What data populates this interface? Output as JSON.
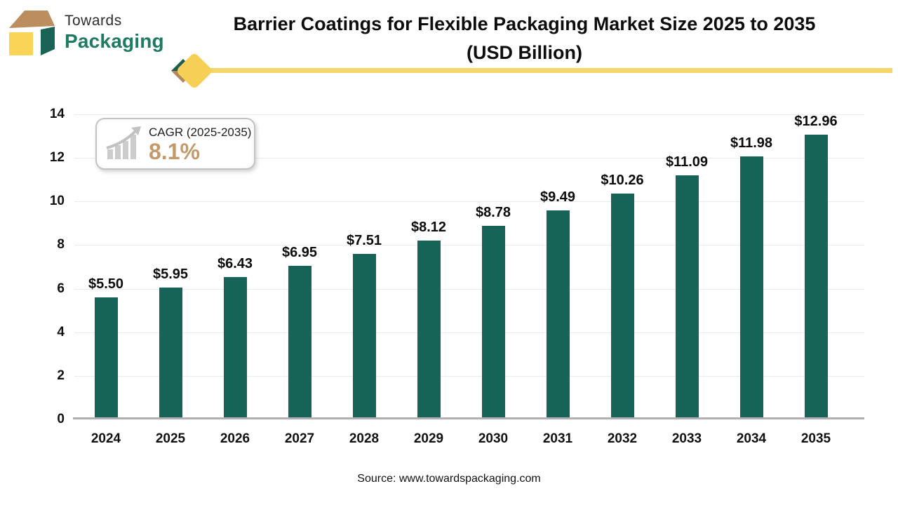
{
  "brand": {
    "line1": "Towards",
    "line2": "Packaging"
  },
  "title": {
    "line1": "Barrier Coatings for Flexible Packaging Market Size 2025 to 2035",
    "line2": "(USD Billion)"
  },
  "cagr_badge": {
    "label": "CAGR (2025-2035)",
    "value": "8.1%"
  },
  "source": "Source: www.towardspackaging.com",
  "colors": {
    "bar_green": "#166358",
    "brand_green": "#1E7A63",
    "brand_tan": "#BC8D5E",
    "brand_yellow": "#F9D457",
    "divider_yellow": "#F5D469",
    "cagr_value_tan": "#C59A6B",
    "gridline": "#ebebeb",
    "axis_line": "#b0b0b0"
  },
  "chart_data": {
    "type": "bar",
    "title": "Barrier Coatings for Flexible Packaging Market Size 2025 to 2035 (USD Billion)",
    "categories": [
      "2024",
      "2025",
      "2026",
      "2027",
      "2028",
      "2029",
      "2030",
      "2031",
      "2032",
      "2033",
      "2034",
      "2035"
    ],
    "values": [
      5.5,
      5.95,
      6.43,
      6.95,
      7.51,
      8.12,
      8.78,
      9.49,
      10.26,
      11.09,
      11.98,
      12.96
    ],
    "labels": [
      "$5.50",
      "$5.95",
      "$6.43",
      "$6.95",
      "$7.51",
      "$8.12",
      "$8.78",
      "$9.49",
      "$10.26",
      "$11.09",
      "$11.98",
      "$12.96"
    ],
    "unit": "USD Billion",
    "xlabel": "",
    "ylabel": "",
    "ylim": [
      0,
      14
    ],
    "yticks": [
      0,
      2,
      4,
      6,
      8,
      10,
      12,
      14
    ],
    "grid": "horizontal",
    "legend": "none",
    "bar_color": "#166358"
  }
}
